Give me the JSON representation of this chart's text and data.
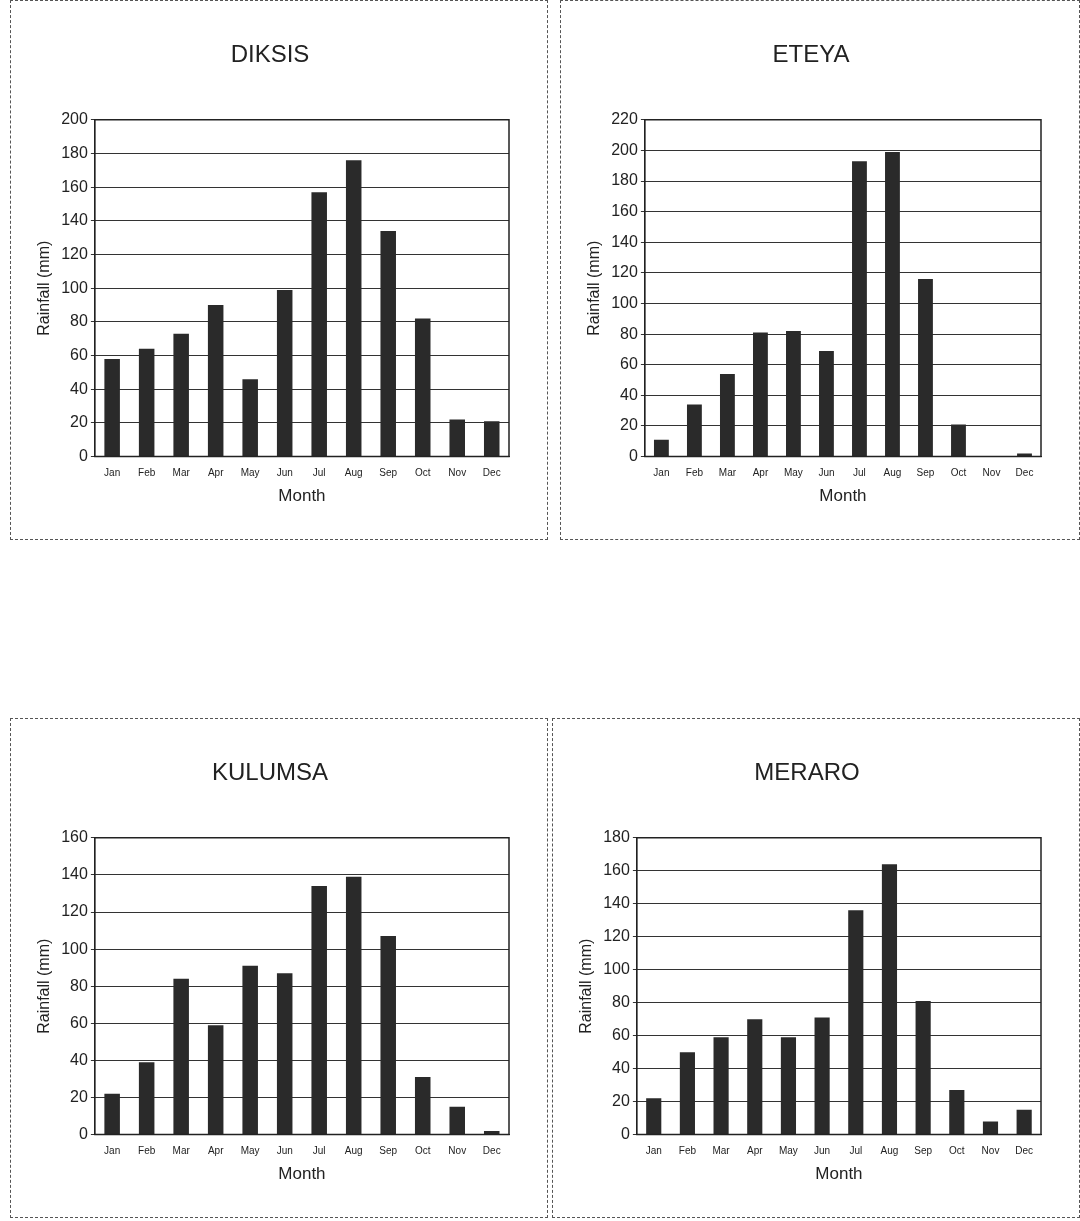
{
  "chart_data": [
    {
      "type": "bar",
      "title": "DIKSIS",
      "xlabel": "Month",
      "ylabel": "Rainfall (mm)",
      "categories": [
        "Jan",
        "Feb",
        "Mar",
        "Apr",
        "May",
        "Jun",
        "Jul",
        "Aug",
        "Sep",
        "Oct",
        "Nov",
        "Dec"
      ],
      "values": [
        58,
        64,
        73,
        90,
        46,
        99,
        157,
        176,
        134,
        82,
        22,
        21
      ],
      "color": "#2a2a2a",
      "ylim": [
        0,
        200
      ],
      "yticks": [
        0,
        20,
        40,
        60,
        80,
        100,
        120,
        140,
        160,
        180,
        200
      ],
      "grid": "y",
      "legend": false
    },
    {
      "type": "bar",
      "title": "ETEYA",
      "xlabel": "Month",
      "ylabel": "Rainfall (mm)",
      "categories": [
        "Jan",
        "Feb",
        "Mar",
        "Apr",
        "May",
        "Jun",
        "Jul",
        "Aug",
        "Sep",
        "Oct",
        "Nov",
        "Dec"
      ],
      "values": [
        11,
        34,
        54,
        81,
        82,
        69,
        193,
        199,
        116,
        21,
        0,
        2
      ],
      "color": "#2a2a2a",
      "ylim": [
        0,
        220
      ],
      "yticks": [
        0,
        20,
        40,
        60,
        80,
        100,
        120,
        140,
        160,
        180,
        200,
        220
      ],
      "grid": "y",
      "legend": false
    },
    {
      "type": "bar",
      "title": "KULUMSA",
      "xlabel": "Month",
      "ylabel": "Rainfall (mm)",
      "categories": [
        "Jan",
        "Feb",
        "Mar",
        "Apr",
        "May",
        "Jun",
        "Jul",
        "Aug",
        "Sep",
        "Oct",
        "Nov",
        "Dec"
      ],
      "values": [
        22,
        39,
        84,
        59,
        91,
        87,
        134,
        139,
        107,
        31,
        15,
        2
      ],
      "color": "#2a2a2a",
      "ylim": [
        0,
        160
      ],
      "yticks": [
        0,
        20,
        40,
        60,
        80,
        100,
        120,
        140,
        160
      ],
      "grid": "y",
      "legend": false
    },
    {
      "type": "bar",
      "title": "MERARO",
      "xlabel": "Month",
      "ylabel": "Rainfall (mm)",
      "categories": [
        "Jan",
        "Feb",
        "Mar",
        "Apr",
        "May",
        "Jun",
        "Jul",
        "Aug",
        "Sep",
        "Oct",
        "Nov",
        "Dec"
      ],
      "values": [
        22,
        50,
        59,
        70,
        59,
        71,
        136,
        164,
        81,
        27,
        8,
        15
      ],
      "color": "#2a2a2a",
      "ylim": [
        0,
        180
      ],
      "yticks": [
        0,
        20,
        40,
        60,
        80,
        100,
        120,
        140,
        160,
        180
      ],
      "grid": "y",
      "legend": false
    }
  ]
}
